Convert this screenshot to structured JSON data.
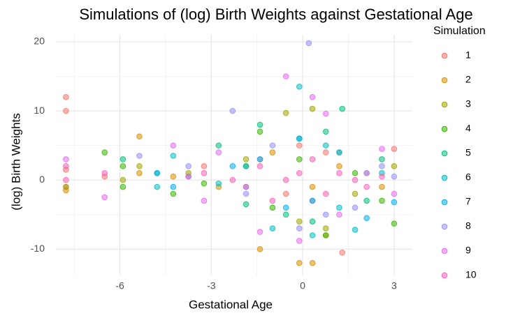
{
  "chart_data": {
    "type": "scatter",
    "title": "Simulations of (log) Birth Weights against Gestational Age",
    "x_label": "Gestational Age",
    "y_label": "(log) Birth Weights",
    "legend_title": "Simulation",
    "legend_position": "right",
    "grid": true,
    "xlim": [
      -8.1,
      3.6
    ],
    "ylim": [
      -13.8,
      21
    ],
    "xticks": [
      -6,
      -3,
      0,
      3
    ],
    "yticks": [
      -10,
      0,
      10,
      20
    ],
    "x_minor_ticks": [
      -7.5,
      -4.5,
      -1.5,
      1.5
    ],
    "y_minor_ticks": [
      -5,
      5,
      15
    ],
    "series": [
      {
        "name": "1",
        "color": "#F8766D",
        "x": [
          -7.77,
          -7.77,
          -7.77,
          -7.77,
          -6.5,
          -3.24,
          -1.4,
          -0.55,
          -0.11,
          0.32,
          0.76,
          1.3,
          2.1,
          3.0
        ],
        "values": [
          12,
          10,
          1.5,
          -1,
          0.5,
          2,
          3,
          -2,
          5,
          -3,
          4,
          -10.5,
          1,
          4.5
        ]
      },
      {
        "name": "2",
        "color": "#D89000",
        "x": [
          -7.77,
          -5.36,
          -5.36,
          -4.25,
          -2.76,
          -1.4,
          -0.99,
          -0.11,
          0.32,
          0.32,
          0.76,
          1.2,
          2.6
        ],
        "values": [
          -1.5,
          6.3,
          1,
          0.5,
          -1,
          -10,
          4,
          -12,
          -12,
          -1,
          -8,
          2,
          -1
        ]
      },
      {
        "name": "3",
        "color": "#A3A500",
        "x": [
          -7.77,
          -5.9,
          -5.36,
          -3.75,
          -1.86,
          -0.55,
          -0.11,
          0.32,
          0.76,
          1.2,
          1.72,
          3.0
        ],
        "values": [
          -1,
          0,
          2,
          1,
          3,
          9.7,
          -6,
          10.3,
          -7,
          4,
          -2,
          2
        ]
      },
      {
        "name": "4",
        "color": "#39B600",
        "x": [
          -6.5,
          -5.9,
          -5.9,
          -4.25,
          -3.24,
          -1.86,
          -1.4,
          -0.99,
          -0.11,
          0.76,
          1.72,
          2.6,
          3.0
        ],
        "values": [
          4,
          -1,
          2,
          -2,
          -0.5,
          2,
          7,
          -4,
          3,
          -8,
          1,
          -3,
          -6.3
        ]
      },
      {
        "name": "5",
        "color": "#00BF7D",
        "x": [
          -5.9,
          -4.78,
          -2.76,
          -1.86,
          -1.4,
          -0.55,
          -0.11,
          0.32,
          0.76,
          1.3,
          2.1,
          2.6
        ],
        "values": [
          3,
          1,
          5,
          -3.5,
          8,
          -5,
          6,
          -6,
          7,
          10.3,
          -3,
          3
        ]
      },
      {
        "name": "6",
        "color": "#00BFC4",
        "x": [
          -4.78,
          -4.25,
          -2.76,
          -1.86,
          -0.99,
          -0.11,
          0.32,
          0.76,
          1.2,
          1.72,
          2.6
        ],
        "values": [
          -1,
          3.5,
          -0.5,
          2,
          -7,
          13.5,
          -8,
          5,
          -4,
          -7.2,
          1
        ]
      },
      {
        "name": "7",
        "color": "#00B0F6",
        "x": [
          -4.78,
          -4.25,
          -3.75,
          -2.3,
          -1.86,
          -1.4,
          -0.55,
          -0.11,
          0.32,
          1.2,
          2.1,
          3.0
        ],
        "values": [
          1,
          -1,
          0.5,
          2,
          -1,
          3,
          -4,
          6,
          -3,
          4,
          -5.5,
          -3.2
        ]
      },
      {
        "name": "8",
        "color": "#9590FF",
        "x": [
          -5.36,
          -3.75,
          -2.3,
          -1.86,
          -0.99,
          -0.11,
          0.2,
          0.76,
          1.72,
          2.1,
          2.6,
          3.0
        ],
        "values": [
          3.5,
          2,
          10,
          -2,
          5,
          -7,
          19.8,
          -5,
          -4,
          1,
          2,
          0.5
        ]
      },
      {
        "name": "9",
        "color": "#E76BF3",
        "x": [
          -7.77,
          -6.5,
          -4.25,
          -3.24,
          -2.76,
          -1.4,
          -0.55,
          -0.11,
          0.32,
          0.76,
          1.2,
          2.6,
          3.0
        ],
        "values": [
          3,
          -2.5,
          5,
          -3,
          4,
          -7.5,
          15,
          -8.8,
          12,
          9.6,
          -5,
          4.5,
          -2
        ]
      },
      {
        "name": "10",
        "color": "#FF62BC",
        "x": [
          -7.77,
          -7.77,
          -6.5,
          -3.75,
          -3.24,
          -2.3,
          -1.86,
          -1.4,
          -0.99,
          -0.55,
          -0.11,
          0.32,
          0.76,
          1.2,
          1.72,
          2.1,
          2.6
        ],
        "values": [
          2,
          0,
          1,
          0.5,
          1,
          0,
          -1,
          2,
          -3,
          0,
          1,
          3,
          -2,
          1,
          0,
          -1,
          0.5
        ]
      }
    ]
  }
}
